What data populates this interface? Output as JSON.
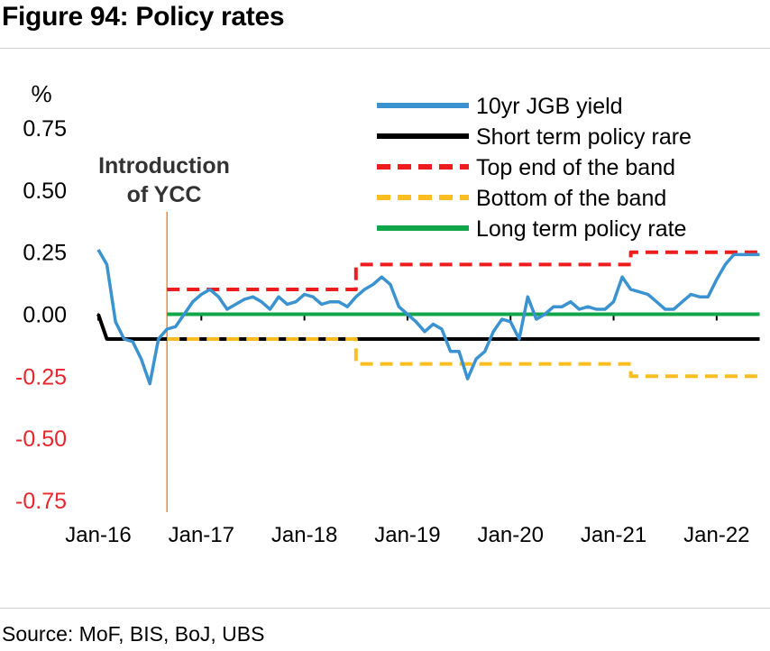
{
  "figure_title": "Figure 94: Policy rates",
  "source": "Source: MoF, BIS, BoJ, UBS",
  "colors": {
    "jgb": "#3a93d0",
    "short_term": "#000000",
    "top_band": "#ee1c1c",
    "bottom_band": "#fbbd1f",
    "long_term": "#12a64a",
    "negative_tick": "#e8262c",
    "annotation_line": "#f08a3a"
  },
  "chart_data": {
    "type": "line",
    "ylabel": "%",
    "ylim": [
      -0.8,
      0.75
    ],
    "yticks": [
      {
        "value": 0.75,
        "label": "0.75"
      },
      {
        "value": 0.5,
        "label": "0.50"
      },
      {
        "value": 0.25,
        "label": "0.25"
      },
      {
        "value": 0.0,
        "label": "0.00"
      },
      {
        "value": -0.25,
        "label": "-0.25"
      },
      {
        "value": -0.5,
        "label": "-0.50"
      },
      {
        "value": -0.75,
        "label": "-0.75"
      }
    ],
    "xlim": [
      "2016-01",
      "2022-07"
    ],
    "xticks": [
      {
        "value": "2016-01",
        "label": "Jan-16"
      },
      {
        "value": "2017-01",
        "label": "Jan-17"
      },
      {
        "value": "2018-01",
        "label": "Jan-18"
      },
      {
        "value": "2019-01",
        "label": "Jan-19"
      },
      {
        "value": "2020-01",
        "label": "Jan-20"
      },
      {
        "value": "2021-01",
        "label": "Jan-21"
      },
      {
        "value": "2022-01",
        "label": "Jan-22"
      }
    ],
    "annotation": {
      "lines": [
        "Introduction",
        "of YCC"
      ],
      "x": "2016-09"
    },
    "legend_position": "top-right",
    "series": [
      {
        "name": "10yr JGB yield",
        "color_key": "jgb",
        "points": [
          [
            "2016-01",
            0.26
          ],
          [
            "2016-02",
            0.2
          ],
          [
            "2016-03",
            -0.03
          ],
          [
            "2016-04",
            -0.1
          ],
          [
            "2016-05",
            -0.11
          ],
          [
            "2016-06",
            -0.18
          ],
          [
            "2016-07",
            -0.28
          ],
          [
            "2016-08",
            -0.1
          ],
          [
            "2016-09",
            -0.06
          ],
          [
            "2016-10",
            -0.05
          ],
          [
            "2016-11",
            0.0
          ],
          [
            "2016-12",
            0.05
          ],
          [
            "2017-01",
            0.08
          ],
          [
            "2017-02",
            0.1
          ],
          [
            "2017-03",
            0.07
          ],
          [
            "2017-04",
            0.02
          ],
          [
            "2017-05",
            0.04
          ],
          [
            "2017-06",
            0.06
          ],
          [
            "2017-07",
            0.07
          ],
          [
            "2017-08",
            0.05
          ],
          [
            "2017-09",
            0.02
          ],
          [
            "2017-10",
            0.07
          ],
          [
            "2017-11",
            0.04
          ],
          [
            "2017-12",
            0.05
          ],
          [
            "2018-01",
            0.08
          ],
          [
            "2018-02",
            0.07
          ],
          [
            "2018-03",
            0.04
          ],
          [
            "2018-04",
            0.05
          ],
          [
            "2018-05",
            0.05
          ],
          [
            "2018-06",
            0.03
          ],
          [
            "2018-07",
            0.07
          ],
          [
            "2018-08",
            0.1
          ],
          [
            "2018-09",
            0.12
          ],
          [
            "2018-10",
            0.15
          ],
          [
            "2018-11",
            0.12
          ],
          [
            "2018-12",
            0.03
          ],
          [
            "2019-01",
            0.0
          ],
          [
            "2019-02",
            -0.03
          ],
          [
            "2019-03",
            -0.07
          ],
          [
            "2019-04",
            -0.04
          ],
          [
            "2019-05",
            -0.06
          ],
          [
            "2019-06",
            -0.15
          ],
          [
            "2019-07",
            -0.15
          ],
          [
            "2019-08",
            -0.26
          ],
          [
            "2019-09",
            -0.18
          ],
          [
            "2019-10",
            -0.15
          ],
          [
            "2019-11",
            -0.07
          ],
          [
            "2019-12",
            -0.02
          ],
          [
            "2020-01",
            -0.03
          ],
          [
            "2020-02",
            -0.1
          ],
          [
            "2020-03",
            0.07
          ],
          [
            "2020-04",
            -0.02
          ],
          [
            "2020-05",
            0.0
          ],
          [
            "2020-06",
            0.03
          ],
          [
            "2020-07",
            0.03
          ],
          [
            "2020-08",
            0.05
          ],
          [
            "2020-09",
            0.02
          ],
          [
            "2020-10",
            0.03
          ],
          [
            "2020-11",
            0.02
          ],
          [
            "2020-12",
            0.02
          ],
          [
            "2021-01",
            0.05
          ],
          [
            "2021-02",
            0.15
          ],
          [
            "2021-03",
            0.1
          ],
          [
            "2021-04",
            0.09
          ],
          [
            "2021-05",
            0.08
          ],
          [
            "2021-06",
            0.05
          ],
          [
            "2021-07",
            0.02
          ],
          [
            "2021-08",
            0.02
          ],
          [
            "2021-09",
            0.05
          ],
          [
            "2021-10",
            0.08
          ],
          [
            "2021-11",
            0.07
          ],
          [
            "2021-12",
            0.07
          ],
          [
            "2022-01",
            0.14
          ],
          [
            "2022-02",
            0.2
          ],
          [
            "2022-03",
            0.24
          ],
          [
            "2022-04",
            0.24
          ],
          [
            "2022-05",
            0.24
          ],
          [
            "2022-06",
            0.24
          ]
        ]
      },
      {
        "name": "Short term policy rare",
        "color_key": "short_term",
        "points": [
          [
            "2016-01",
            0.0
          ],
          [
            "2016-02",
            -0.1
          ],
          [
            "2022-06",
            -0.1
          ]
        ]
      },
      {
        "name": "Top end of the band",
        "color_key": "top_band",
        "points": [
          [
            "2016-09",
            0.1
          ],
          [
            "2018-07",
            0.1
          ],
          [
            "2018-07",
            0.2
          ],
          [
            "2021-03",
            0.2
          ],
          [
            "2021-03",
            0.25
          ],
          [
            "2022-06",
            0.25
          ]
        ]
      },
      {
        "name": "Bottom of the band",
        "color_key": "bottom_band",
        "points": [
          [
            "2016-09",
            -0.1
          ],
          [
            "2018-07",
            -0.1
          ],
          [
            "2018-07",
            -0.2
          ],
          [
            "2021-03",
            -0.2
          ],
          [
            "2021-03",
            -0.25
          ],
          [
            "2022-06",
            -0.25
          ]
        ]
      },
      {
        "name": "Long term policy rate",
        "color_key": "long_term",
        "points": [
          [
            "2016-09",
            0.0
          ],
          [
            "2022-06",
            0.0
          ]
        ]
      }
    ]
  }
}
